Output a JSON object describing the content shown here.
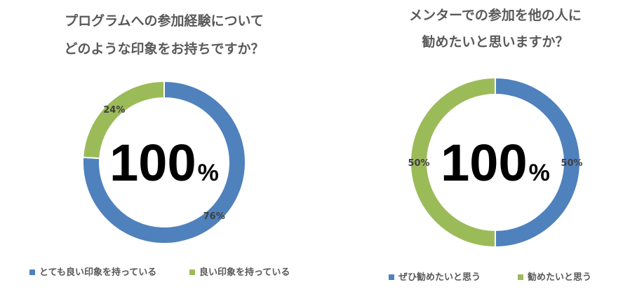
{
  "chart_data": [
    {
      "type": "pie",
      "title_lines": [
        "プログラムへの参加経験について",
        "どのような印象をお持ちですか？"
      ],
      "center_value": "100",
      "center_unit": "%",
      "slices": [
        {
          "name": "とても良い印象を持っている",
          "value": 76,
          "label": "76%",
          "color": "#4f81bd"
        },
        {
          "name": "良い印象を持っている",
          "value": 24,
          "label": "24%",
          "color": "#9bbb59"
        }
      ]
    },
    {
      "type": "pie",
      "title_lines": [
        "メンターでの参加を他の人に",
        "勧めたいと思いますか？"
      ],
      "center_value": "100",
      "center_unit": "%",
      "slices": [
        {
          "name": "ぜひ勧めたいと思う",
          "value": 50,
          "label": "50%",
          "color": "#4f81bd"
        },
        {
          "name": "勧めたいと思う",
          "value": 50,
          "label": "50%",
          "color": "#9bbb59"
        }
      ]
    }
  ]
}
